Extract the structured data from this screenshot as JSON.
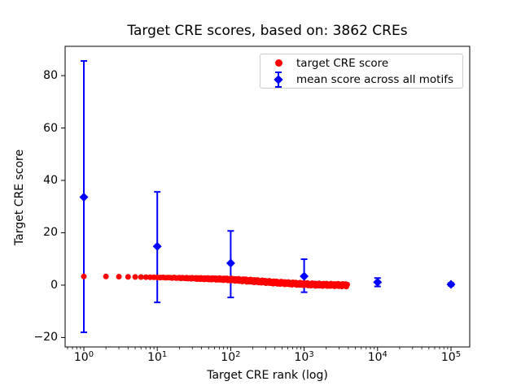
{
  "figure": {
    "title": "Target CRE scores, based on: 3862 CREs",
    "xlabel": "Target CRE rank (log)",
    "ylabel": "Target CRE score"
  },
  "legend": {
    "position": "upper right",
    "items": [
      {
        "label": "target CRE score",
        "marker": "red-circle",
        "color": "#ff0000"
      },
      {
        "label": "mean score across all motifs",
        "marker": "blue-diamond-errorbar",
        "color": "#0000ff"
      }
    ]
  },
  "chart_data": {
    "type": "scatter",
    "title": "Target CRE scores, based on: 3862 CREs",
    "xlabel": "Target CRE rank (log)",
    "ylabel": "Target CRE score",
    "x_scale": "log",
    "grid": false,
    "legend_position": "upper right",
    "xlim_log10": [
      -0.255,
      5.255
    ],
    "ylim": [
      -23.6,
      91.2
    ],
    "x_ticks": [
      {
        "base": "10",
        "exponent": "0",
        "value": 1
      },
      {
        "base": "10",
        "exponent": "1",
        "value": 10
      },
      {
        "base": "10",
        "exponent": "2",
        "value": 100
      },
      {
        "base": "10",
        "exponent": "3",
        "value": 1000
      },
      {
        "base": "10",
        "exponent": "4",
        "value": 10000
      },
      {
        "base": "10",
        "exponent": "5",
        "value": 100000
      }
    ],
    "y_ticks": [
      {
        "label": "80",
        "value": 80
      },
      {
        "label": "60",
        "value": 60
      },
      {
        "label": "40",
        "value": 40
      },
      {
        "label": "20",
        "value": 20
      },
      {
        "label": "0",
        "value": 0
      },
      {
        "label": "−20",
        "value": -20
      }
    ],
    "series": [
      {
        "name": "target CRE score",
        "marker": "circle",
        "color": "#ff0000",
        "n_points_total": 3862,
        "rank_range": [
          1,
          3862
        ],
        "trend_keypoints_log10rank_value": [
          [
            0.0,
            3.3
          ],
          [
            0.301,
            3.3
          ],
          [
            0.477,
            3.22
          ],
          [
            0.699,
            3.12
          ],
          [
            1.0,
            2.95
          ],
          [
            1.301,
            2.75
          ],
          [
            1.602,
            2.5
          ],
          [
            1.845,
            2.32
          ],
          [
            2.0,
            2.15
          ],
          [
            2.301,
            1.6
          ],
          [
            2.602,
            1.0
          ],
          [
            2.8,
            0.68
          ],
          [
            3.0,
            0.38
          ],
          [
            3.2,
            0.17
          ],
          [
            3.4,
            0.05
          ],
          [
            3.587,
            -0.05
          ]
        ],
        "values_at_key_ranks": {
          "1": 3.3,
          "10": 2.95,
          "100": 2.15,
          "1000": 0.38,
          "3862": -0.05
        }
      },
      {
        "name": "mean score across all motifs",
        "marker": "diamond",
        "color": "#0000ff",
        "points": [
          {
            "rank": 1,
            "mean": 33.6,
            "err_low": -18.0,
            "err_high": 85.6
          },
          {
            "rank": 10,
            "mean": 14.8,
            "err_low": -6.6,
            "err_high": 35.6
          },
          {
            "rank": 100,
            "mean": 8.4,
            "err_low": -4.7,
            "err_high": 20.7
          },
          {
            "rank": 1000,
            "mean": 3.4,
            "err_low": -2.7,
            "err_high": 9.9
          },
          {
            "rank": 10000,
            "mean": 1.1,
            "err_low": -0.5,
            "err_high": 2.7
          },
          {
            "rank": 100000,
            "mean": 0.3,
            "err_low": -0.2,
            "err_high": 0.8
          }
        ]
      }
    ]
  }
}
